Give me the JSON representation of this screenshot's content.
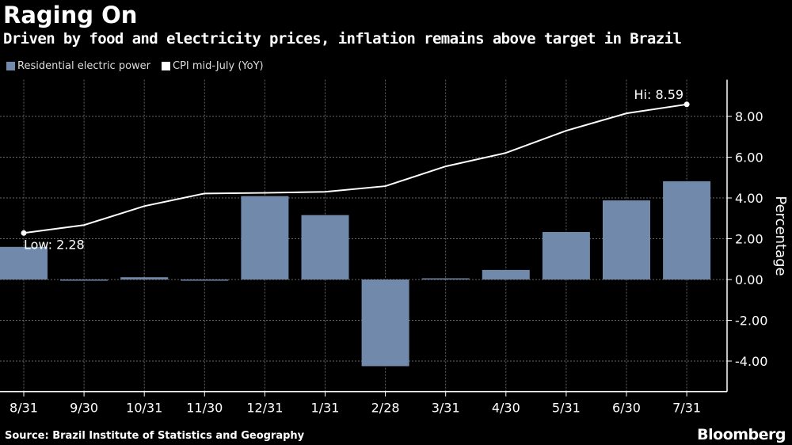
{
  "chart_data": {
    "type": "bar",
    "title": "Raging On",
    "subtitle": "Driven by food and electricity prices, inflation remains above target in Brazil",
    "categories": [
      "8/31",
      "9/30",
      "10/31",
      "11/30",
      "12/31",
      "1/31",
      "2/28",
      "3/31",
      "4/30",
      "5/31",
      "6/30",
      "7/31"
    ],
    "series": [
      {
        "name": "Residential electric power",
        "type": "bar",
        "color": "#7189ab",
        "values": [
          1.6,
          -0.02,
          0.11,
          -0.04,
          4.09,
          3.16,
          -4.25,
          0.02,
          0.47,
          2.33,
          3.88,
          4.82
        ]
      },
      {
        "name": "CPI mid-July (YoY)",
        "type": "line",
        "color": "#ffffff",
        "values": [
          2.28,
          2.67,
          3.6,
          4.22,
          4.25,
          4.3,
          4.58,
          5.55,
          6.21,
          7.3,
          8.15,
          8.59
        ]
      }
    ],
    "annotations": [
      {
        "text": "Low: 2.28",
        "category": "8/31"
      },
      {
        "text": "Hi: 8.59",
        "category": "7/31"
      }
    ],
    "ylabel": "Percentage",
    "yticks": [
      "8.00",
      "6.00",
      "4.00",
      "2.00",
      "0.00",
      "-2.00",
      "-4.00"
    ],
    "ytick_values": [
      8,
      6,
      4,
      2,
      0,
      -2,
      -4
    ],
    "ylim": [
      -5.5,
      9.8
    ],
    "y_axis_side": "right",
    "grid": true,
    "legend_position": "top-left",
    "source": "Source: Brazil Institute of Statistics and Geography",
    "logo": "Bloomberg"
  }
}
